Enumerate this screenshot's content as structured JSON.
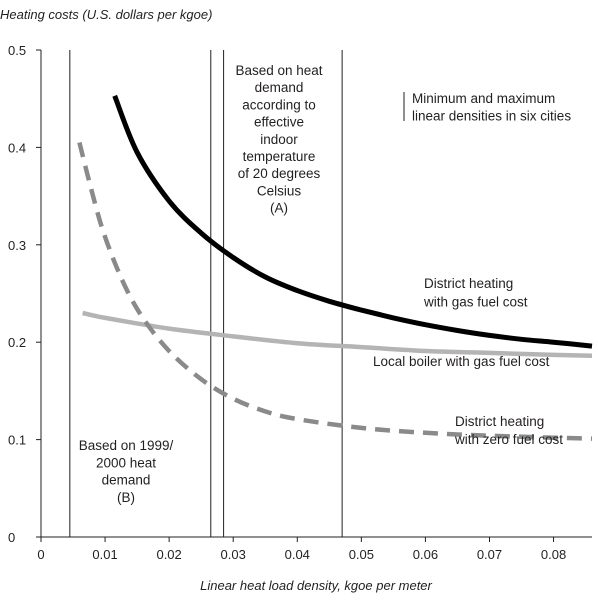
{
  "chart_data": {
    "type": "line",
    "ylabel": "Heating costs (U.S. dollars per kgoe)",
    "xlabel": "Linear heat load density, kgoe per meter",
    "xlim": [
      0,
      0.086
    ],
    "ylim": [
      0,
      0.5
    ],
    "xticks": [
      "0",
      "0.01",
      "0.02",
      "0.03",
      "0.04",
      "0.05",
      "0.06",
      "0.07",
      "0.08"
    ],
    "yticks": [
      "0",
      "0.1",
      "0.2",
      "0.3",
      "0.4",
      "0.5"
    ],
    "grid": false,
    "series": [
      {
        "name": "District heating\nwith gas fuel cost",
        "color": "#000000",
        "style": "solid",
        "x": [
          0.0115,
          0.015,
          0.02,
          0.025,
          0.03,
          0.035,
          0.04,
          0.045,
          0.05,
          0.055,
          0.06,
          0.065,
          0.07,
          0.075,
          0.08,
          0.086
        ],
        "y": [
          0.453,
          0.395,
          0.345,
          0.312,
          0.287,
          0.267,
          0.253,
          0.242,
          0.233,
          0.225,
          0.218,
          0.212,
          0.207,
          0.203,
          0.2,
          0.196
        ]
      },
      {
        "name": "Local boiler with gas fuel cost",
        "color": "#b4b4b4",
        "style": "solid",
        "x": [
          0.0065,
          0.01,
          0.02,
          0.03,
          0.04,
          0.05,
          0.06,
          0.07,
          0.08,
          0.086
        ],
        "y": [
          0.23,
          0.225,
          0.214,
          0.206,
          0.199,
          0.195,
          0.191,
          0.189,
          0.187,
          0.186
        ]
      },
      {
        "name": "District heating\nwith zero fuel cost",
        "color": "#8a8a8a",
        "style": "dashed",
        "x": [
          0.006,
          0.008,
          0.01,
          0.013,
          0.016,
          0.02,
          0.025,
          0.03,
          0.035,
          0.04,
          0.05,
          0.06,
          0.07,
          0.08,
          0.086
        ],
        "y": [
          0.405,
          0.353,
          0.308,
          0.259,
          0.224,
          0.191,
          0.162,
          0.142,
          0.129,
          0.121,
          0.112,
          0.107,
          0.104,
          0.102,
          0.101
        ]
      }
    ],
    "vlines": [
      0.0045,
      0.0265,
      0.0285,
      0.047
    ],
    "annotations": {
      "a": [
        "Based on heat",
        "demand",
        "according to",
        "effective",
        "indoor",
        "temperature",
        "of 20 degrees",
        "Celsius",
        "(A)"
      ],
      "b": [
        "Based on 1999/",
        "2000 heat",
        "demand",
        "(B)"
      ],
      "legend": [
        "Minimum and maximum",
        "linear densities in six cities"
      ],
      "gas_dh": [
        "District heating",
        "with gas fuel cost"
      ],
      "boiler": [
        "Local boiler with gas fuel cost"
      ],
      "zero_dh": [
        "District heating",
        "with zero fuel cost"
      ]
    }
  }
}
